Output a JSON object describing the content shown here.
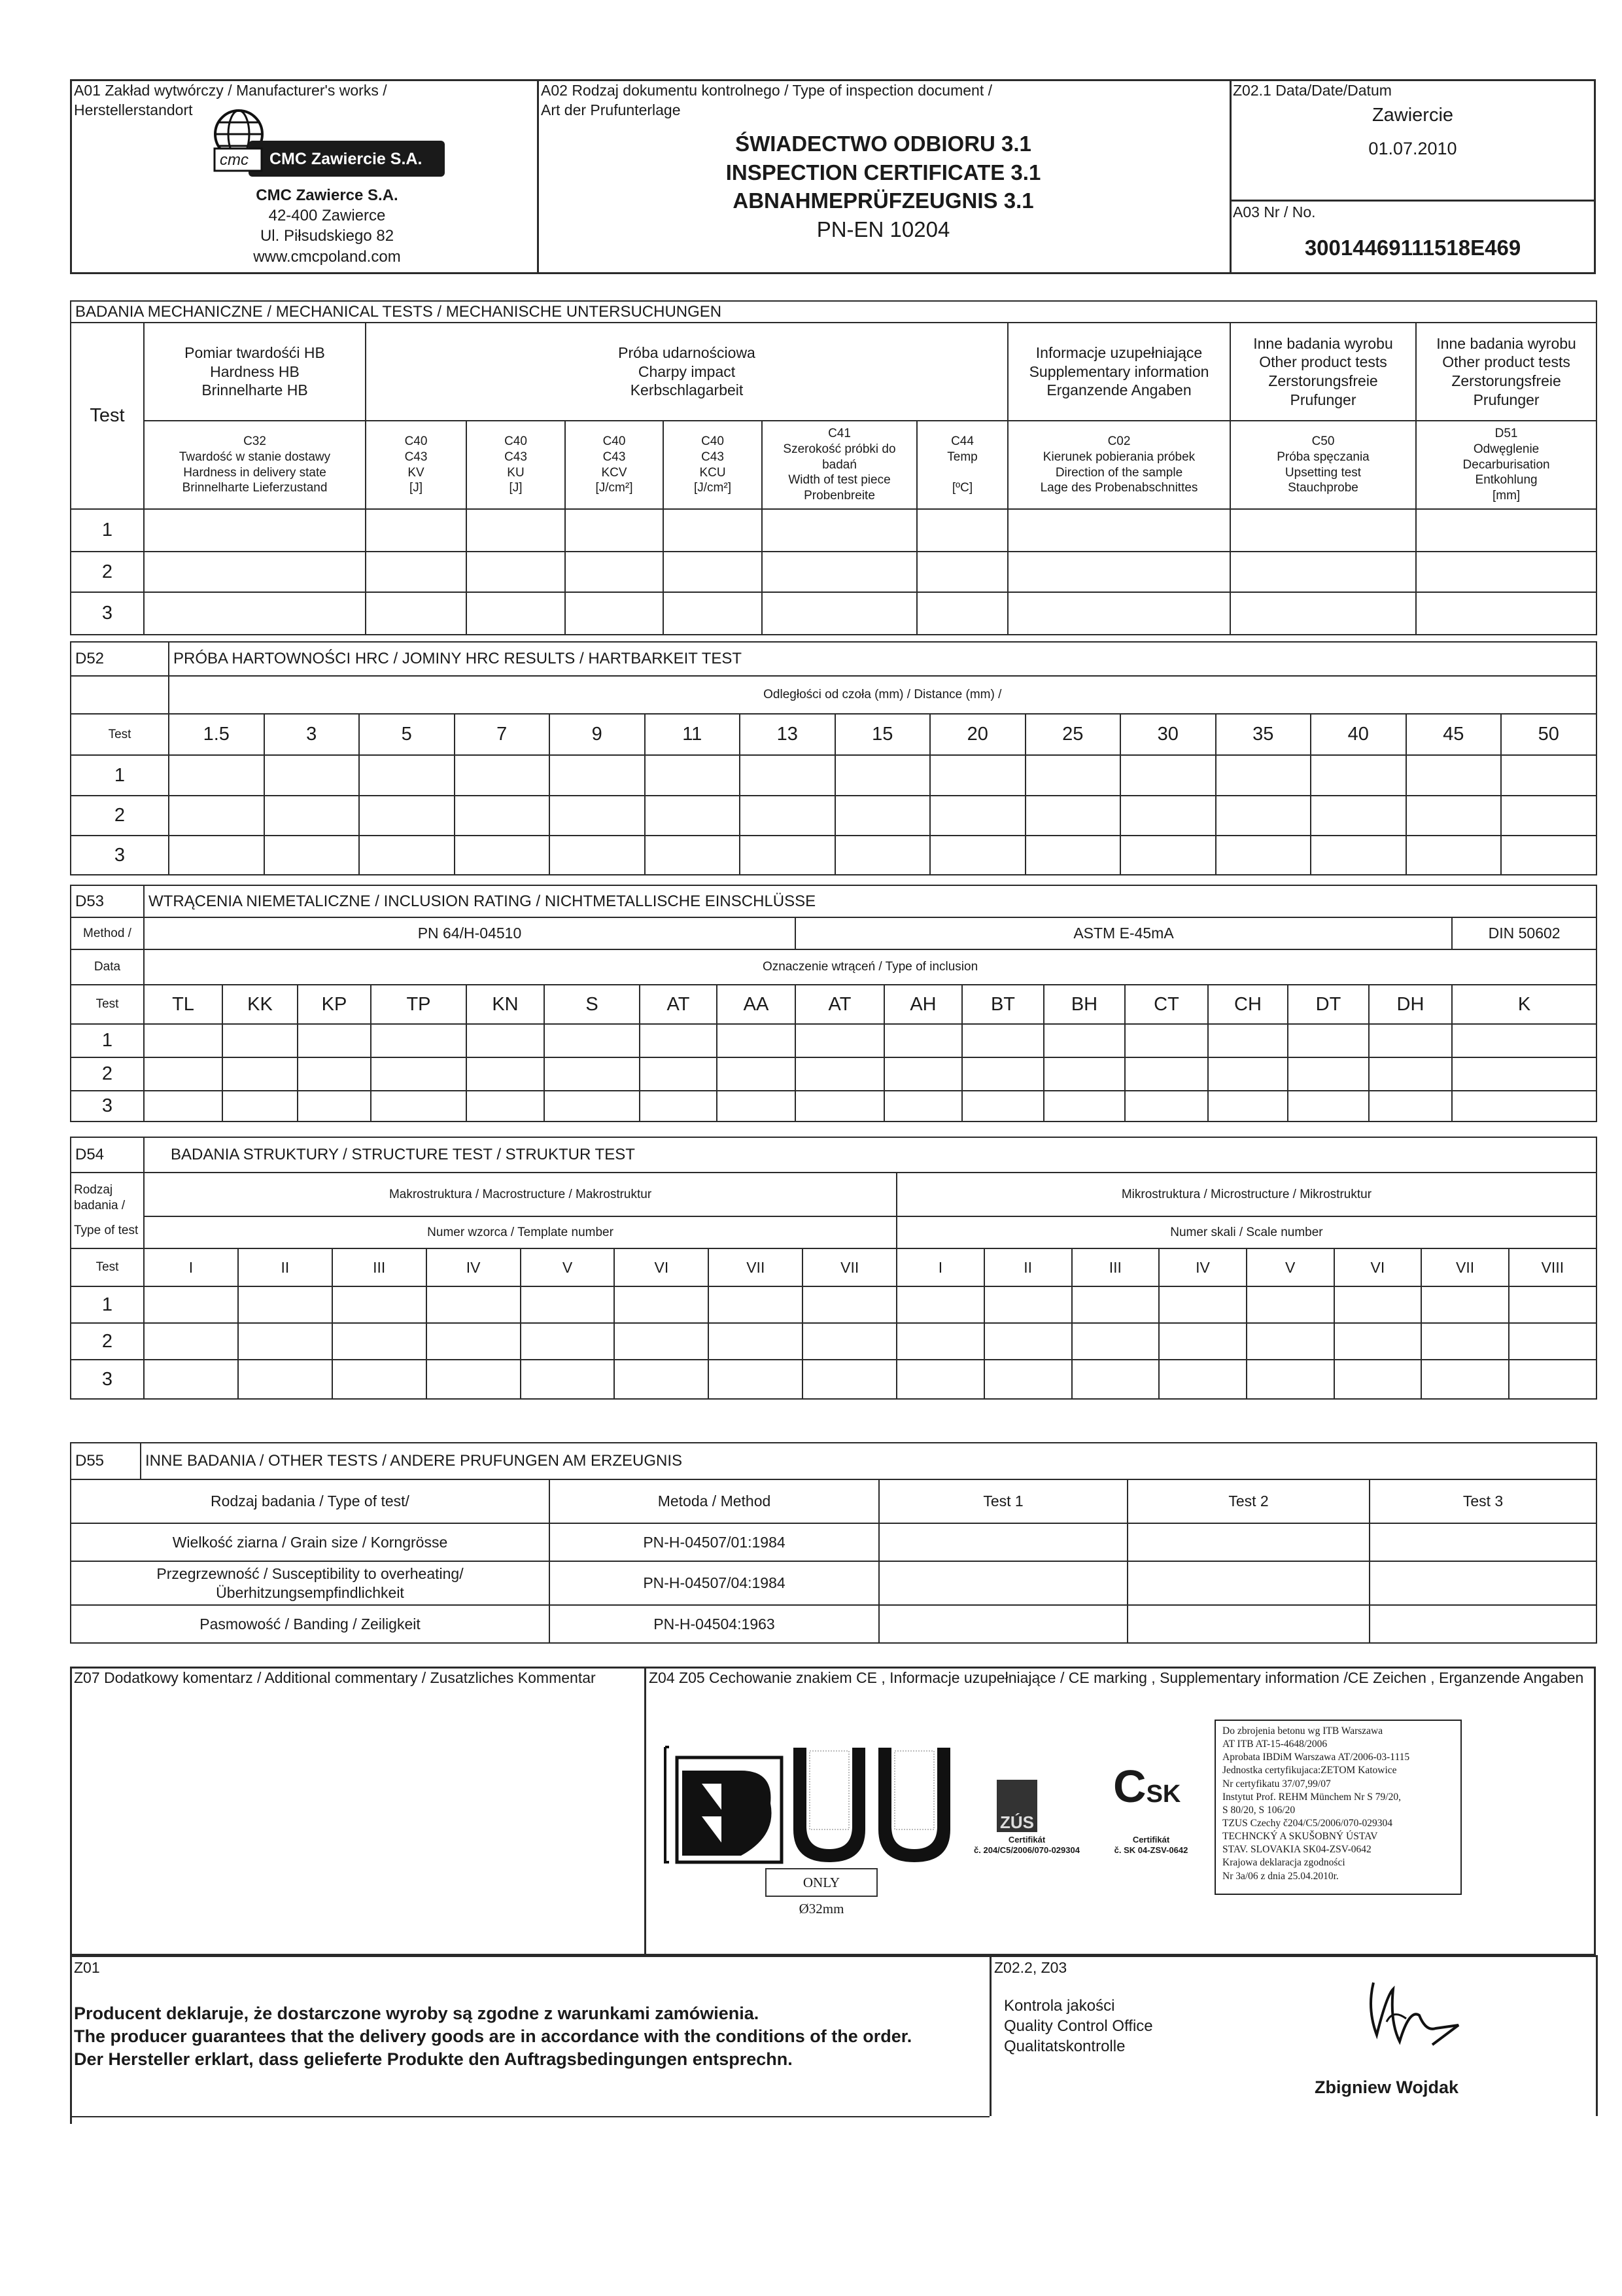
{
  "header": {
    "a01_label": "A01 Zakład wytwórczy / Manufacturer's works /",
    "a01_label2": "Herstellerstandort",
    "logo_text": "CMC Zawiercie S.A.",
    "logo_mark": "cmc",
    "company": "CMC Zawierce S.A.",
    "address1": "42-400 Zawierce",
    "address2": "Ul. Piłsudskiego 82",
    "website": "www.cmcpoland.com",
    "a02_label": "A02 Rodzaj dokumentu kontrolnego / Type of inspection document /",
    "a02_label2": "Art der Prufunterlage",
    "title_pl": "ŚWIADECTWO ODBIORU 3.1",
    "title_en": "INSPECTION CERTIFICATE 3.1",
    "title_de": "ABNAHMEPRÜFZEUGNIS 3.1",
    "standard": "PN-EN 10204",
    "date_label": "Z02.1 Data/Date/Datum",
    "place": "Zawiercie",
    "date": "01.07.2010",
    "number_label": "A03 Nr / No.",
    "number": "30014469111518E469"
  },
  "mechanical": {
    "title": "BADANIA MECHANICZNE / MECHANICAL TESTS / MECHANISCHE UNTERSUCHUNGEN",
    "test_label": "Test",
    "groups": [
      [
        "Pomiar twardośći HB",
        "Hardness HB",
        "Brinnelharte HB"
      ],
      [
        "Próba udarnościowa",
        "Charpy impact",
        "Kerbschlagarbeit"
      ],
      [
        "Informacje uzupełniające",
        "Supplementary information",
        "Erganzende Angaben"
      ],
      [
        "Inne badania wyrobu",
        "Other  product tests",
        "Zerstorungsfreie",
        "Prufunger"
      ],
      [
        "Inne badania wyrobu",
        "Other  product tests",
        "Zerstorungsfreie",
        "Prufunger"
      ]
    ],
    "columns": [
      [
        "C32",
        "Twardość w stanie dostawy",
        "Hardness in delivery state",
        "Brinnelharte Lieferzustand"
      ],
      [
        "C40",
        "C43",
        "KV",
        "[J]"
      ],
      [
        "C40",
        "C43",
        "KU",
        "[J]"
      ],
      [
        "C40",
        "C43",
        "KCV",
        "[J/cm²]"
      ],
      [
        "C40",
        "C43",
        "KCU",
        "[J/cm²]"
      ],
      [
        "C41",
        "Szerokość próbki do badań",
        "Width of test piece",
        "Probenbreite"
      ],
      [
        "C44",
        "Temp",
        "",
        "[ºC]"
      ],
      [
        "C02",
        "Kierunek pobierania próbek",
        "Direction of the sample",
        "Lage des Probenabschnittes"
      ],
      [
        "C50",
        "Próba spęczania",
        "Upsetting test",
        "Stauchprobe"
      ],
      [
        "D51",
        "Odwęglenie",
        "Decarburisation",
        "Entkohlung",
        "[mm]"
      ]
    ],
    "rows": [
      "1",
      "2",
      "3"
    ]
  },
  "jominy": {
    "code": "D52",
    "title": "PRÓBA HARTOWNOŚCI HRC / JOMINY HRC RESULTS / HARTBARKEIT TEST",
    "distance_label": "Odległości od czoła (mm) / Distance (mm) /",
    "test_label": "Test",
    "distances": [
      "1.5",
      "3",
      "5",
      "7",
      "9",
      "11",
      "13",
      "15",
      "20",
      "25",
      "30",
      "35",
      "40",
      "45",
      "50"
    ],
    "rows": [
      "1",
      "2",
      "3"
    ]
  },
  "inclusion": {
    "code": "D53",
    "title": "WTRĄCENIA NIEMETALICZNE / INCLUSION RATING / NICHTMETALLISCHE EINSCHLÜSSE",
    "method_label": "Method /",
    "methods": [
      "PN 64/H-04510",
      "ASTM E-45mA",
      "DIN 50602"
    ],
    "data_label": "Data",
    "type_label": "Oznaczenie wtrąceń / Type of inclusion",
    "test_label": "Test",
    "types": [
      "TL",
      "KK",
      "KP",
      "TP",
      "KN",
      "S",
      "AT",
      "AA",
      "AT",
      "AH",
      "BT",
      "BH",
      "CT",
      "CH",
      "DT",
      "DH",
      "K"
    ],
    "rows": [
      "1",
      "2",
      "3"
    ]
  },
  "structure": {
    "code": "D54",
    "title": "BADANIA STRUKTURY / STRUCTURE TEST / STRUKTUR TEST",
    "kind_label": "Rodzaj badania /",
    "type_label": "Type of test",
    "macro": "Makrostruktura / Macrostructure / Makrostruktur",
    "micro": "Mikrostruktura / Microstructure / Mikrostruktur",
    "template_number": "Numer wzorca / Template number",
    "scale_number": "Numer skali / Scale number",
    "test_label": "Test",
    "macro_cols": [
      "I",
      "II",
      "III",
      "IV",
      "V",
      "VI",
      "VII",
      "VII"
    ],
    "micro_cols": [
      "I",
      "II",
      "III",
      "IV",
      "V",
      "VI",
      "VII",
      "VIII"
    ],
    "rows": [
      "1",
      "2",
      "3"
    ]
  },
  "other": {
    "code": "D55",
    "title": "INNE BADANIA / OTHER TESTS / ANDERE PRUFUNGEN AM ERZEUGNIS",
    "headers": [
      "Rodzaj badania / Type of  test/",
      "Metoda / Method",
      "Test 1",
      "Test 2",
      "Test 3"
    ],
    "rows": [
      {
        "type": "Wielkość ziarna / Grain size / Korngrösse",
        "method": "PN-H-04507/01:1984"
      },
      {
        "type": "Przegrzewność / Susceptibility to overheating/ Überhitzungsempfindlichkeit",
        "method": "PN-H-04507/04:1984"
      },
      {
        "type": "Pasmowość / Banding / Zeiligkeit",
        "method": "PN-H-04504:1963"
      }
    ]
  },
  "comments": {
    "z07_label": "Z07  Dodatkowy komentarz / Additional commentary / Zusatzliches Kommentar",
    "z04_label": "Z04 Z05  Cechowanie znakiem CE , Informacje uzupełniające / CE marking , Supplementary information /CE Zeichen ,  Erganzende Angaben",
    "only_label": "ONLY Ø32mm",
    "zus_logo": "ZÚS",
    "zus_cert": "Certifikát",
    "zus_number": "č. 204/C5/2006/070-029304",
    "csk_logo_c": "C",
    "csk_logo_sk": "SK",
    "csk_cert": "Certifikát",
    "csk_number": "č. SK 04-ZSV-0642",
    "approvals": [
      "Do zbrojenia betonu wg ITB Warszawa",
      "AT ITB AT-15-4648/2006",
      "Aprobata IBDiM Warszawa AT/2006-03-1115",
      "Jednostka certyfikujaca:ZETOM Katowice",
      "Nr certyfikatu 37/07,99/07",
      "Instytut Prof. REHM Münchem Nr S 79/20,",
      "S 80/20, S 106/20",
      "TZUS Czechy č204/C5/2006/070-029304",
      "TECHNCKÝ A SKUŠOBNÝ ÚSTAV",
      "STAV. SLOVAKIA SK04-ZSV-0642",
      "Krajowa deklaracja zgodności",
      "Nr 3a/06 z dnia 25.04.2010r."
    ]
  },
  "footer": {
    "z01_label": "Z01",
    "declaration": [
      "Producent deklaruje, że dostarczone wyroby są zgodne z warunkami zamówienia.",
      "The producer guarantees that the delivery goods are in accordance with the conditions of the order.",
      "Der Hersteller erklart, dass gelieferte Produkte den Auftragsbedingungen entsprechn."
    ],
    "z02_label": "Z02.2, Z03",
    "qc": [
      "Kontrola jakości",
      "Quality Control Office",
      "Qualitatskontrolle"
    ],
    "signatory": "Zbigniew Wojdak"
  }
}
